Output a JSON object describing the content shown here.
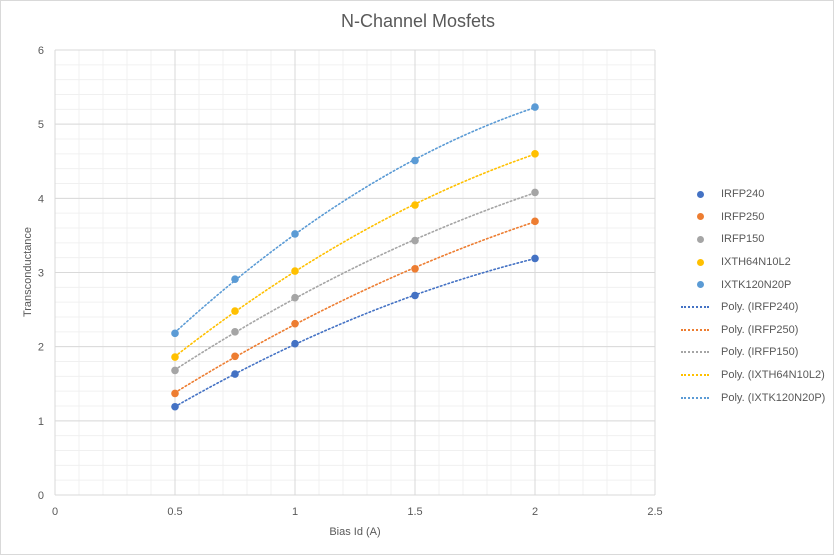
{
  "chart_data": {
    "type": "scatter",
    "title": "N-Channel Mosfets",
    "xlabel": "Bias Id (A)",
    "ylabel": "Transconductance",
    "xlim": [
      0,
      2.5
    ],
    "ylim": [
      0,
      6
    ],
    "x_ticks": [
      "0",
      "0.5",
      "1",
      "1.5",
      "2",
      "2.5"
    ],
    "y_ticks": [
      "0",
      "1",
      "2",
      "3",
      "4",
      "5",
      "6"
    ],
    "grid": true,
    "legend_position": "right",
    "trendline_type": "polynomial",
    "series": [
      {
        "name": "IRFP240",
        "color": "#4472C4",
        "x": [
          0.5,
          0.75,
          1,
          1.5,
          2
        ],
        "y": [
          1.19,
          1.63,
          2.04,
          2.69,
          3.19
        ]
      },
      {
        "name": "IRFP250",
        "color": "#ED7D31",
        "x": [
          0.5,
          0.75,
          1,
          1.5,
          2
        ],
        "y": [
          1.37,
          1.87,
          2.31,
          3.05,
          3.69
        ]
      },
      {
        "name": "IRFP150",
        "color": "#A5A5A5",
        "x": [
          0.5,
          0.75,
          1,
          1.5,
          2
        ],
        "y": [
          1.68,
          2.2,
          2.66,
          3.43,
          4.08
        ]
      },
      {
        "name": "IXTH64N10L2",
        "color": "#FFC000",
        "x": [
          0.5,
          0.75,
          1,
          1.5,
          2
        ],
        "y": [
          1.86,
          2.48,
          3.02,
          3.91,
          4.6
        ]
      },
      {
        "name": "IXTK120N20P",
        "color": "#5B9BD5",
        "x": [
          0.5,
          0.75,
          1,
          1.5,
          2
        ],
        "y": [
          2.18,
          2.91,
          3.52,
          4.51,
          5.23
        ]
      }
    ],
    "legend": [
      {
        "label": "IRFP240",
        "kind": "marker",
        "color": "#4472C4"
      },
      {
        "label": "IRFP250",
        "kind": "marker",
        "color": "#ED7D31"
      },
      {
        "label": "IRFP150",
        "kind": "marker",
        "color": "#A5A5A5"
      },
      {
        "label": "IXTH64N10L2",
        "kind": "marker",
        "color": "#FFC000"
      },
      {
        "label": "IXTK120N20P",
        "kind": "marker",
        "color": "#5B9BD5"
      },
      {
        "label": "Poly. (IRFP240)",
        "kind": "dotted-line",
        "color": "#4472C4"
      },
      {
        "label": "Poly. (IRFP250)",
        "kind": "dotted-line",
        "color": "#ED7D31"
      },
      {
        "label": "Poly. (IRFP150)",
        "kind": "dotted-line",
        "color": "#A5A5A5"
      },
      {
        "label": "Poly. (IXTH64N10L2)",
        "kind": "dotted-line",
        "color": "#FFC000"
      },
      {
        "label": "Poly. (IXTK120N20P)",
        "kind": "dotted-line",
        "color": "#5B9BD5"
      }
    ]
  }
}
